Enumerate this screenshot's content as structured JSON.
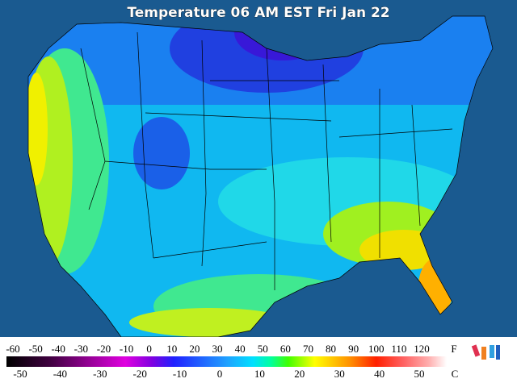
{
  "header": {
    "title": "Temperature 06 AM EST Fri Jan 22"
  },
  "legend": {
    "fahrenheit_unit": "F",
    "celsius_unit": "C",
    "fahrenheit_labels": [
      -60,
      -50,
      -40,
      -30,
      -20,
      -10,
      0,
      10,
      20,
      30,
      40,
      50,
      60,
      70,
      80,
      90,
      100,
      110,
      120
    ],
    "celsius_labels": [
      -50,
      -40,
      -30,
      -20,
      -10,
      0,
      10,
      20,
      30,
      40,
      50
    ]
  }
}
